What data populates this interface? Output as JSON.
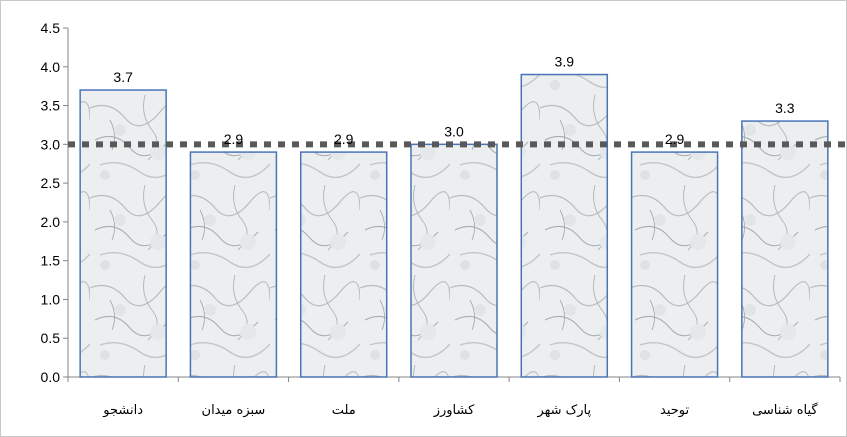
{
  "chart_data": {
    "type": "bar",
    "categories": [
      "دانشجو",
      "سبزه میدان",
      "ملت",
      "کشاورز",
      "پارک شهر",
      "توحید",
      "گیاه شناسی"
    ],
    "values": [
      3.7,
      2.9,
      2.9,
      3.0,
      3.9,
      2.9,
      3.3
    ],
    "data_labels": [
      "3.7",
      "2.9",
      "2.9",
      "3.0",
      "3.9",
      "2.9",
      "3.3"
    ],
    "ylim": [
      0,
      4.5
    ],
    "yticks": [
      0.0,
      0.5,
      1.0,
      1.5,
      2.0,
      2.5,
      3.0,
      3.5,
      4.0,
      4.5
    ],
    "ytick_labels": [
      "0.0",
      "0.5",
      "1.0",
      "1.5",
      "2.0",
      "2.5",
      "3.0",
      "3.5",
      "4.0",
      "4.5"
    ],
    "reference_line": 3.0,
    "grid": false,
    "bar_border_color": "#4a74b8",
    "bar_fill": "marble-texture",
    "reference_line_color": "#595959"
  }
}
